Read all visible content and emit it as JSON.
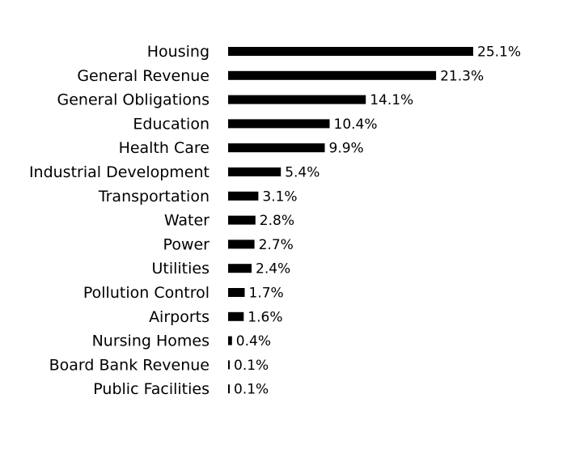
{
  "colors": {
    "bar": "#000000",
    "text": "#000000",
    "background": "#ffffff"
  },
  "chart_data": {
    "type": "bar",
    "orientation": "horizontal",
    "categories": [
      "Housing",
      "General Revenue",
      "General Obligations",
      "Education",
      "Health Care",
      "Industrial Development",
      "Transportation",
      "Water",
      "Power",
      "Utilities",
      "Pollution Control",
      "Airports",
      "Nursing Homes",
      "Board Bank Revenue",
      "Public Facilities"
    ],
    "values": [
      25.1,
      21.3,
      14.1,
      10.4,
      9.9,
      5.4,
      3.1,
      2.8,
      2.7,
      2.4,
      1.7,
      1.6,
      0.4,
      0.1,
      0.1
    ],
    "value_labels": [
      "25.1%",
      "21.3%",
      "14.1%",
      "10.4%",
      "9.9%",
      "5.4%",
      "3.1%",
      "2.8%",
      "2.7%",
      "2.4%",
      "1.7%",
      "1.6%",
      "0.4%",
      "0.1%",
      "0.1%"
    ],
    "xlim": [
      0,
      25.1
    ],
    "grid": false,
    "legend": "none"
  }
}
